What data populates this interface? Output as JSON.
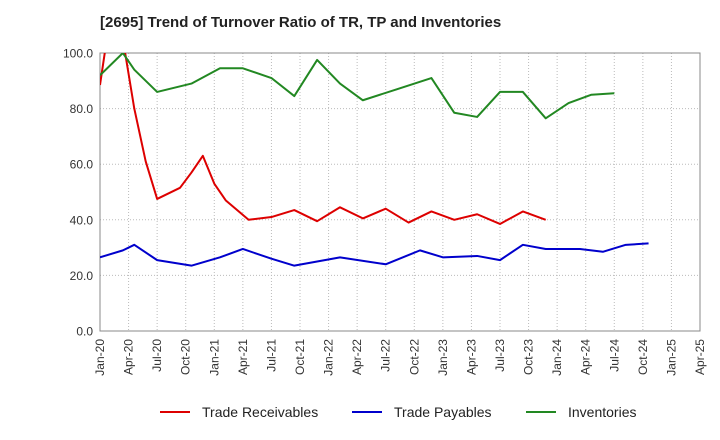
{
  "title": "[2695]  Trend of Turnover Ratio of TR, TP and Inventories",
  "chart_data": {
    "type": "line",
    "x_tick_labels": [
      "Jan-20",
      "Apr-20",
      "Jul-20",
      "Oct-20",
      "Jan-21",
      "Apr-21",
      "Jul-21",
      "Oct-21",
      "Jan-22",
      "Apr-22",
      "Jul-22",
      "Oct-22",
      "Jan-23",
      "Apr-23",
      "Jul-23",
      "Oct-23",
      "Jan-24",
      "Apr-24",
      "Jul-24",
      "Oct-24",
      "Jan-25",
      "Apr-25"
    ],
    "y_tick_labels": [
      "0.0",
      "20.0",
      "40.0",
      "60.0",
      "80.0",
      "100.0"
    ],
    "ylim": [
      0,
      100
    ],
    "grid": true,
    "legend_position": "bottom",
    "series": [
      {
        "name": "Trade Receivables",
        "color": "#dd0000",
        "points": [
          [
            0,
            88.5
          ],
          [
            3,
            130
          ],
          [
            4,
            105
          ],
          [
            6,
            80
          ],
          [
            8,
            61
          ],
          [
            10,
            47.5
          ],
          [
            14,
            51.5
          ],
          [
            16,
            57
          ],
          [
            18,
            63
          ],
          [
            20,
            53
          ],
          [
            22,
            47
          ],
          [
            26,
            40
          ],
          [
            30,
            41
          ],
          [
            34,
            43.5
          ],
          [
            38,
            39.5
          ],
          [
            42,
            44.5
          ],
          [
            46,
            40.5
          ],
          [
            50,
            44
          ],
          [
            54,
            39
          ],
          [
            58,
            43
          ],
          [
            62,
            40
          ],
          [
            66,
            42
          ],
          [
            70,
            38.5
          ],
          [
            74,
            43
          ],
          [
            78,
            40
          ]
        ]
      },
      {
        "name": "Trade Payables",
        "color": "#0000cc",
        "points": [
          [
            0,
            26.5
          ],
          [
            4,
            29
          ],
          [
            6,
            31
          ],
          [
            10,
            25.5
          ],
          [
            16,
            23.5
          ],
          [
            21,
            26.5
          ],
          [
            25,
            29.5
          ],
          [
            30,
            26
          ],
          [
            34,
            23.5
          ],
          [
            42,
            26.5
          ],
          [
            50,
            24
          ],
          [
            56,
            29
          ],
          [
            60,
            26.5
          ],
          [
            66,
            27
          ],
          [
            70,
            25.5
          ],
          [
            74,
            31
          ],
          [
            78,
            29.5
          ],
          [
            84,
            29.5
          ],
          [
            88,
            28.5
          ],
          [
            92,
            31
          ],
          [
            96,
            31.5
          ]
        ]
      },
      {
        "name": "Inventories",
        "color": "#228822",
        "points": [
          [
            0,
            92
          ],
          [
            4,
            100
          ],
          [
            6,
            94
          ],
          [
            10,
            86
          ],
          [
            16,
            89
          ],
          [
            21,
            94.5
          ],
          [
            25,
            94.5
          ],
          [
            30,
            91
          ],
          [
            34,
            84.5
          ],
          [
            38,
            97.5
          ],
          [
            42,
            89
          ],
          [
            46,
            83
          ],
          [
            52,
            87
          ],
          [
            58,
            91
          ],
          [
            62,
            78.5
          ],
          [
            66,
            77
          ],
          [
            70,
            86
          ],
          [
            74,
            86
          ],
          [
            78,
            76.5
          ],
          [
            82,
            82
          ],
          [
            86,
            85
          ],
          [
            90,
            85.5
          ]
        ]
      }
    ]
  }
}
